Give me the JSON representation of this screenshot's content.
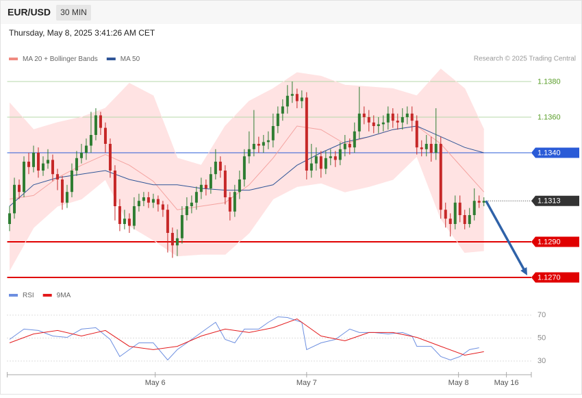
{
  "header": {
    "symbol": "EUR/USD",
    "interval": "30 MIN",
    "timestamp": "Thursday, May 8, 2025 3:41:26 AM CET"
  },
  "chart_data": [
    {
      "type": "candlestick",
      "credit": "Research © 2025 Trading Central",
      "legend": [
        {
          "name": "MA 20 + Bollinger Bands",
          "color": "#f08a80"
        },
        {
          "name": "MA 50",
          "color": "#2f5597"
        }
      ],
      "xlim": [
        -0.5,
        108.9
      ],
      "ylim": [
        1.1263,
        1.1387
      ],
      "up_color": "#2e7d32",
      "down_color": "#c62828",
      "open": [
        1.13,
        1.1306,
        1.1322,
        1.1318,
        1.1335,
        1.1332,
        1.134,
        1.133,
        1.1334,
        1.1336,
        1.1328,
        1.1325,
        1.1312,
        1.1318,
        1.133,
        1.1337,
        1.134,
        1.1344,
        1.135,
        1.1361,
        1.1354,
        1.1345,
        1.133,
        1.131,
        1.13,
        1.1303,
        1.1299,
        1.131,
        1.1313,
        1.1315,
        1.1312,
        1.1314,
        1.1311,
        1.1308,
        1.1295,
        1.1288,
        1.1292,
        1.1305,
        1.131,
        1.1312,
        1.1318,
        1.1322,
        1.132,
        1.1328,
        1.1335,
        1.133,
        1.1315,
        1.1307,
        1.1318,
        1.1325,
        1.1338,
        1.1342,
        1.1345,
        1.1344,
        1.1346,
        1.1347,
        1.1355,
        1.1362,
        1.1366,
        1.1372,
        1.1373,
        1.1369,
        1.1371,
        1.133,
        1.1334,
        1.1338,
        1.1331,
        1.1337,
        1.1338,
        1.1336,
        1.1342,
        1.1345,
        1.1343,
        1.1352,
        1.1362,
        1.136,
        1.1357,
        1.1355,
        1.1356,
        1.1357,
        1.1362,
        1.1358,
        1.1357,
        1.136,
        1.1362,
        1.1358,
        1.1343,
        1.1342,
        1.1345,
        1.134,
        1.1345,
        1.1308,
        1.1303,
        1.13,
        1.1312,
        1.1305,
        1.13,
        1.1305,
        1.1313,
        1.1312
      ],
      "high": [
        1.131,
        1.1326,
        1.1325,
        1.1338,
        1.134,
        1.1344,
        1.1343,
        1.1338,
        1.1342,
        1.1339,
        1.1331,
        1.1327,
        1.1322,
        1.1334,
        1.1341,
        1.1345,
        1.1348,
        1.1363,
        1.1365,
        1.1363,
        1.1357,
        1.1348,
        1.1333,
        1.1314,
        1.1308,
        1.1306,
        1.1315,
        1.1317,
        1.1318,
        1.1318,
        1.1317,
        1.1316,
        1.1313,
        1.1311,
        1.1298,
        1.1297,
        1.131,
        1.1315,
        1.1316,
        1.1321,
        1.1326,
        1.1325,
        1.1332,
        1.1342,
        1.1338,
        1.1333,
        1.1318,
        1.1322,
        1.133,
        1.1342,
        1.1352,
        1.1364,
        1.1349,
        1.135,
        1.1352,
        1.1362,
        1.1366,
        1.137,
        1.1378,
        1.138,
        1.1376,
        1.1375,
        1.1374,
        1.1345,
        1.1343,
        1.1341,
        1.1341,
        1.1342,
        1.1341,
        1.1346,
        1.135,
        1.1348,
        1.1357,
        1.1377,
        1.1366,
        1.1364,
        1.1361,
        1.136,
        1.1361,
        1.1366,
        1.1365,
        1.1362,
        1.1365,
        1.1366,
        1.1366,
        1.1361,
        1.1347,
        1.135,
        1.1349,
        1.1365,
        1.1349,
        1.1312,
        1.1306,
        1.1316,
        1.1316,
        1.1308,
        1.1309,
        1.132,
        1.1316,
        1.1315
      ],
      "low": [
        1.1296,
        1.1303,
        1.1314,
        1.1315,
        1.1328,
        1.1329,
        1.1326,
        1.1327,
        1.1331,
        1.1324,
        1.1319,
        1.1308,
        1.1309,
        1.1315,
        1.1327,
        1.1334,
        1.1336,
        1.134,
        1.1347,
        1.135,
        1.134,
        1.1326,
        1.1302,
        1.1296,
        1.1297,
        1.1295,
        1.1297,
        1.1307,
        1.131,
        1.1309,
        1.1309,
        1.1307,
        1.1304,
        1.1284,
        1.1281,
        1.1282,
        1.1289,
        1.1302,
        1.1306,
        1.1308,
        1.1314,
        1.1316,
        1.1317,
        1.1325,
        1.1326,
        1.1311,
        1.1302,
        1.1304,
        1.1314,
        1.1321,
        1.1334,
        1.1338,
        1.134,
        1.134,
        1.1342,
        1.1343,
        1.1351,
        1.1358,
        1.1362,
        1.1368,
        1.1365,
        1.1365,
        1.1325,
        1.1326,
        1.133,
        1.1326,
        1.1328,
        1.1333,
        1.1332,
        1.1333,
        1.1338,
        1.1339,
        1.134,
        1.1348,
        1.1356,
        1.1352,
        1.1351,
        1.1351,
        1.1352,
        1.1353,
        1.1354,
        1.1353,
        1.1353,
        1.1356,
        1.1352,
        1.1339,
        1.1338,
        1.1338,
        1.1335,
        1.1336,
        1.1303,
        1.1298,
        1.1293,
        1.1297,
        1.1301,
        1.1297,
        1.1298,
        1.1302,
        1.1309,
        1.131
      ],
      "close": [
        1.1306,
        1.1322,
        1.1318,
        1.1335,
        1.1332,
        1.134,
        1.133,
        1.1334,
        1.1336,
        1.1328,
        1.1325,
        1.1312,
        1.1318,
        1.133,
        1.1337,
        1.134,
        1.1344,
        1.135,
        1.1361,
        1.1354,
        1.1345,
        1.133,
        1.131,
        1.13,
        1.1303,
        1.1299,
        1.131,
        1.1313,
        1.1315,
        1.1312,
        1.1314,
        1.1311,
        1.1308,
        1.1295,
        1.1288,
        1.1292,
        1.1305,
        1.131,
        1.1312,
        1.1318,
        1.1322,
        1.132,
        1.1328,
        1.1335,
        1.133,
        1.1315,
        1.1307,
        1.1318,
        1.1325,
        1.1338,
        1.1342,
        1.1345,
        1.1344,
        1.1346,
        1.1347,
        1.1355,
        1.1362,
        1.1366,
        1.1372,
        1.1373,
        1.1369,
        1.1371,
        1.133,
        1.1334,
        1.1338,
        1.1331,
        1.1337,
        1.1338,
        1.1336,
        1.1342,
        1.1345,
        1.1343,
        1.1352,
        1.1362,
        1.136,
        1.1357,
        1.1355,
        1.1356,
        1.1357,
        1.1362,
        1.1358,
        1.1357,
        1.136,
        1.1362,
        1.1358,
        1.1343,
        1.1342,
        1.1345,
        1.134,
        1.1345,
        1.1308,
        1.1303,
        1.13,
        1.1312,
        1.1305,
        1.13,
        1.1305,
        1.1313,
        1.1312,
        1.1313
      ],
      "bollinger": {
        "x": [
          0,
          5,
          10,
          15,
          20,
          25,
          30,
          35,
          40,
          45,
          50,
          55,
          60,
          65,
          70,
          75,
          80,
          85,
          90,
          95,
          99
        ],
        "upper": [
          1.1368,
          1.1353,
          1.1357,
          1.136,
          1.1365,
          1.1379,
          1.1372,
          1.1337,
          1.1333,
          1.1355,
          1.1369,
          1.1376,
          1.1385,
          1.1383,
          1.1378,
          1.1377,
          1.1376,
          1.1372,
          1.1387,
          1.1376,
          1.1353
        ],
        "middle": [
          1.1314,
          1.1316,
          1.1326,
          1.1333,
          1.1339,
          1.1333,
          1.1324,
          1.1308,
          1.131,
          1.1312,
          1.1322,
          1.1337,
          1.1355,
          1.1353,
          1.1345,
          1.1349,
          1.1353,
          1.1355,
          1.1345,
          1.133,
          1.1318
        ],
        "lower": [
          1.1274,
          1.1298,
          1.131,
          1.1314,
          1.1325,
          1.1299,
          1.1291,
          1.1282,
          1.1283,
          1.1283,
          1.1295,
          1.1314,
          1.1321,
          1.1323,
          1.1318,
          1.1321,
          1.1325,
          1.1338,
          1.1303,
          1.1284,
          1.1285
        ],
        "fill": "#ffe3e3",
        "color": "#f4a3a0"
      },
      "ma50": {
        "x": [
          0,
          5,
          10,
          15,
          20,
          25,
          30,
          35,
          40,
          45,
          50,
          55,
          60,
          65,
          70,
          75,
          80,
          85,
          90,
          95,
          99
        ],
        "values": [
          1.131,
          1.1322,
          1.1326,
          1.1328,
          1.133,
          1.1325,
          1.1322,
          1.1322,
          1.132,
          1.1319,
          1.1319,
          1.1322,
          1.1333,
          1.134,
          1.1346,
          1.1349,
          1.1353,
          1.1355,
          1.1349,
          1.1343,
          1.134
        ]
      },
      "levels": [
        {
          "value": 1.138,
          "label": "1.1380",
          "color": "#b6d7a8",
          "text_color": "#5a9e2a",
          "boxed": false,
          "width": 1
        },
        {
          "value": 1.136,
          "label": "1.1360",
          "color": "#b6d7a8",
          "text_color": "#5a9e2a",
          "boxed": false,
          "width": 1
        },
        {
          "value": 1.134,
          "label": "1.1340",
          "color": "#2a5bd7",
          "text_color": "#ffffff",
          "boxed": true,
          "width": 1
        },
        {
          "value": 1.1313,
          "label": "1.1313",
          "color": "#333333",
          "text_color": "#ffffff",
          "boxed": true,
          "width": 1,
          "dotted": true
        },
        {
          "value": 1.129,
          "label": "1.1290",
          "color": "#e00000",
          "text_color": "#ffffff",
          "boxed": true,
          "width": 2
        },
        {
          "value": 1.127,
          "label": "1.1270",
          "color": "#e00000",
          "text_color": "#ffffff",
          "boxed": true,
          "width": 2
        }
      ],
      "forecast_color": "#2f62a8"
    },
    {
      "type": "line",
      "xlim": [
        -0.5,
        108.9
      ],
      "ylim": [
        22,
        75
      ],
      "yticks": [
        70,
        50,
        30
      ],
      "xticks": [
        {
          "value": 30.4,
          "label": "May 6"
        },
        {
          "value": 62,
          "label": "May 7"
        },
        {
          "value": 93.7,
          "label": "May 8"
        },
        {
          "value": 103.7,
          "label": "May 16"
        }
      ],
      "series": [
        {
          "name": "RSI",
          "color": "#6d8fe0",
          "x": [
            0,
            3,
            6,
            9,
            12,
            15,
            18,
            21,
            23,
            25,
            27,
            30,
            33,
            35,
            38,
            41,
            43,
            45,
            47,
            49,
            52,
            54,
            56,
            58,
            61,
            62,
            65,
            68,
            71,
            73,
            76,
            79,
            82,
            84,
            85,
            88,
            90,
            92,
            94,
            96,
            98
          ],
          "values": [
            48.8,
            57.8,
            56.6,
            51.8,
            50.6,
            57.8,
            59.0,
            48.8,
            33.9,
            39.9,
            45.8,
            45.8,
            30.9,
            39.9,
            48.8,
            57.8,
            63.7,
            48.8,
            45.8,
            57.8,
            57.8,
            63.7,
            68.5,
            67.9,
            63.7,
            39.9,
            45.8,
            48.8,
            57.8,
            54.8,
            54.8,
            53.6,
            54.8,
            51.8,
            42.8,
            42.8,
            33.9,
            30.9,
            33.9,
            39.9,
            41.6
          ]
        },
        {
          "name": "9MA",
          "color": "#e31a1c",
          "x": [
            0,
            5,
            10,
            15,
            20,
            25,
            30,
            35,
            40,
            45,
            50,
            55,
            60,
            65,
            70,
            75,
            80,
            85,
            90,
            95,
            99
          ],
          "values": [
            45.8,
            53.6,
            56.6,
            51.8,
            56.6,
            42.8,
            39.9,
            42.8,
            51.8,
            57.8,
            54.8,
            59.0,
            66.7,
            51.8,
            47.6,
            54.8,
            54.8,
            50.6,
            42.8,
            35.1,
            38.1
          ]
        }
      ]
    }
  ]
}
